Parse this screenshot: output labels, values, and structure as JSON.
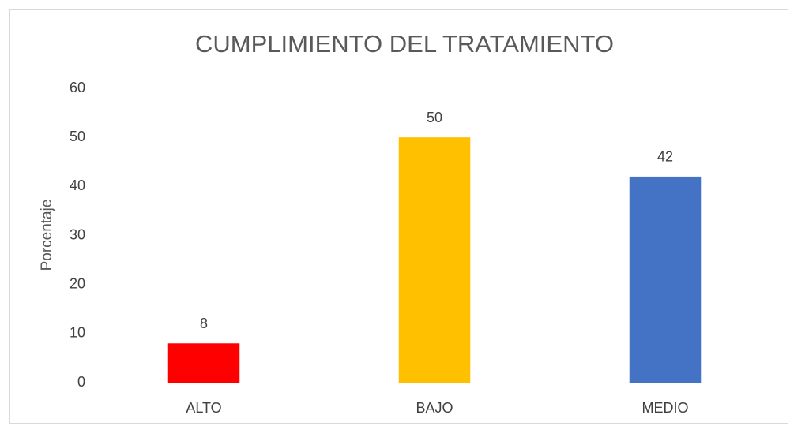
{
  "chart_data": {
    "type": "bar",
    "title": "CUMPLIMIENTO DEL TRATAMIENTO",
    "y_label": "Porcentaje",
    "categories": [
      "ALTO",
      "BAJO",
      "MEDIO"
    ],
    "values": [
      8,
      50,
      42
    ],
    "colors": [
      "#ff0000",
      "#ffc000",
      "#4472c4"
    ],
    "ylim": [
      0,
      60
    ],
    "yticks": [
      0,
      10,
      20,
      30,
      40,
      50,
      60
    ],
    "grid": false,
    "data_labels": true
  }
}
